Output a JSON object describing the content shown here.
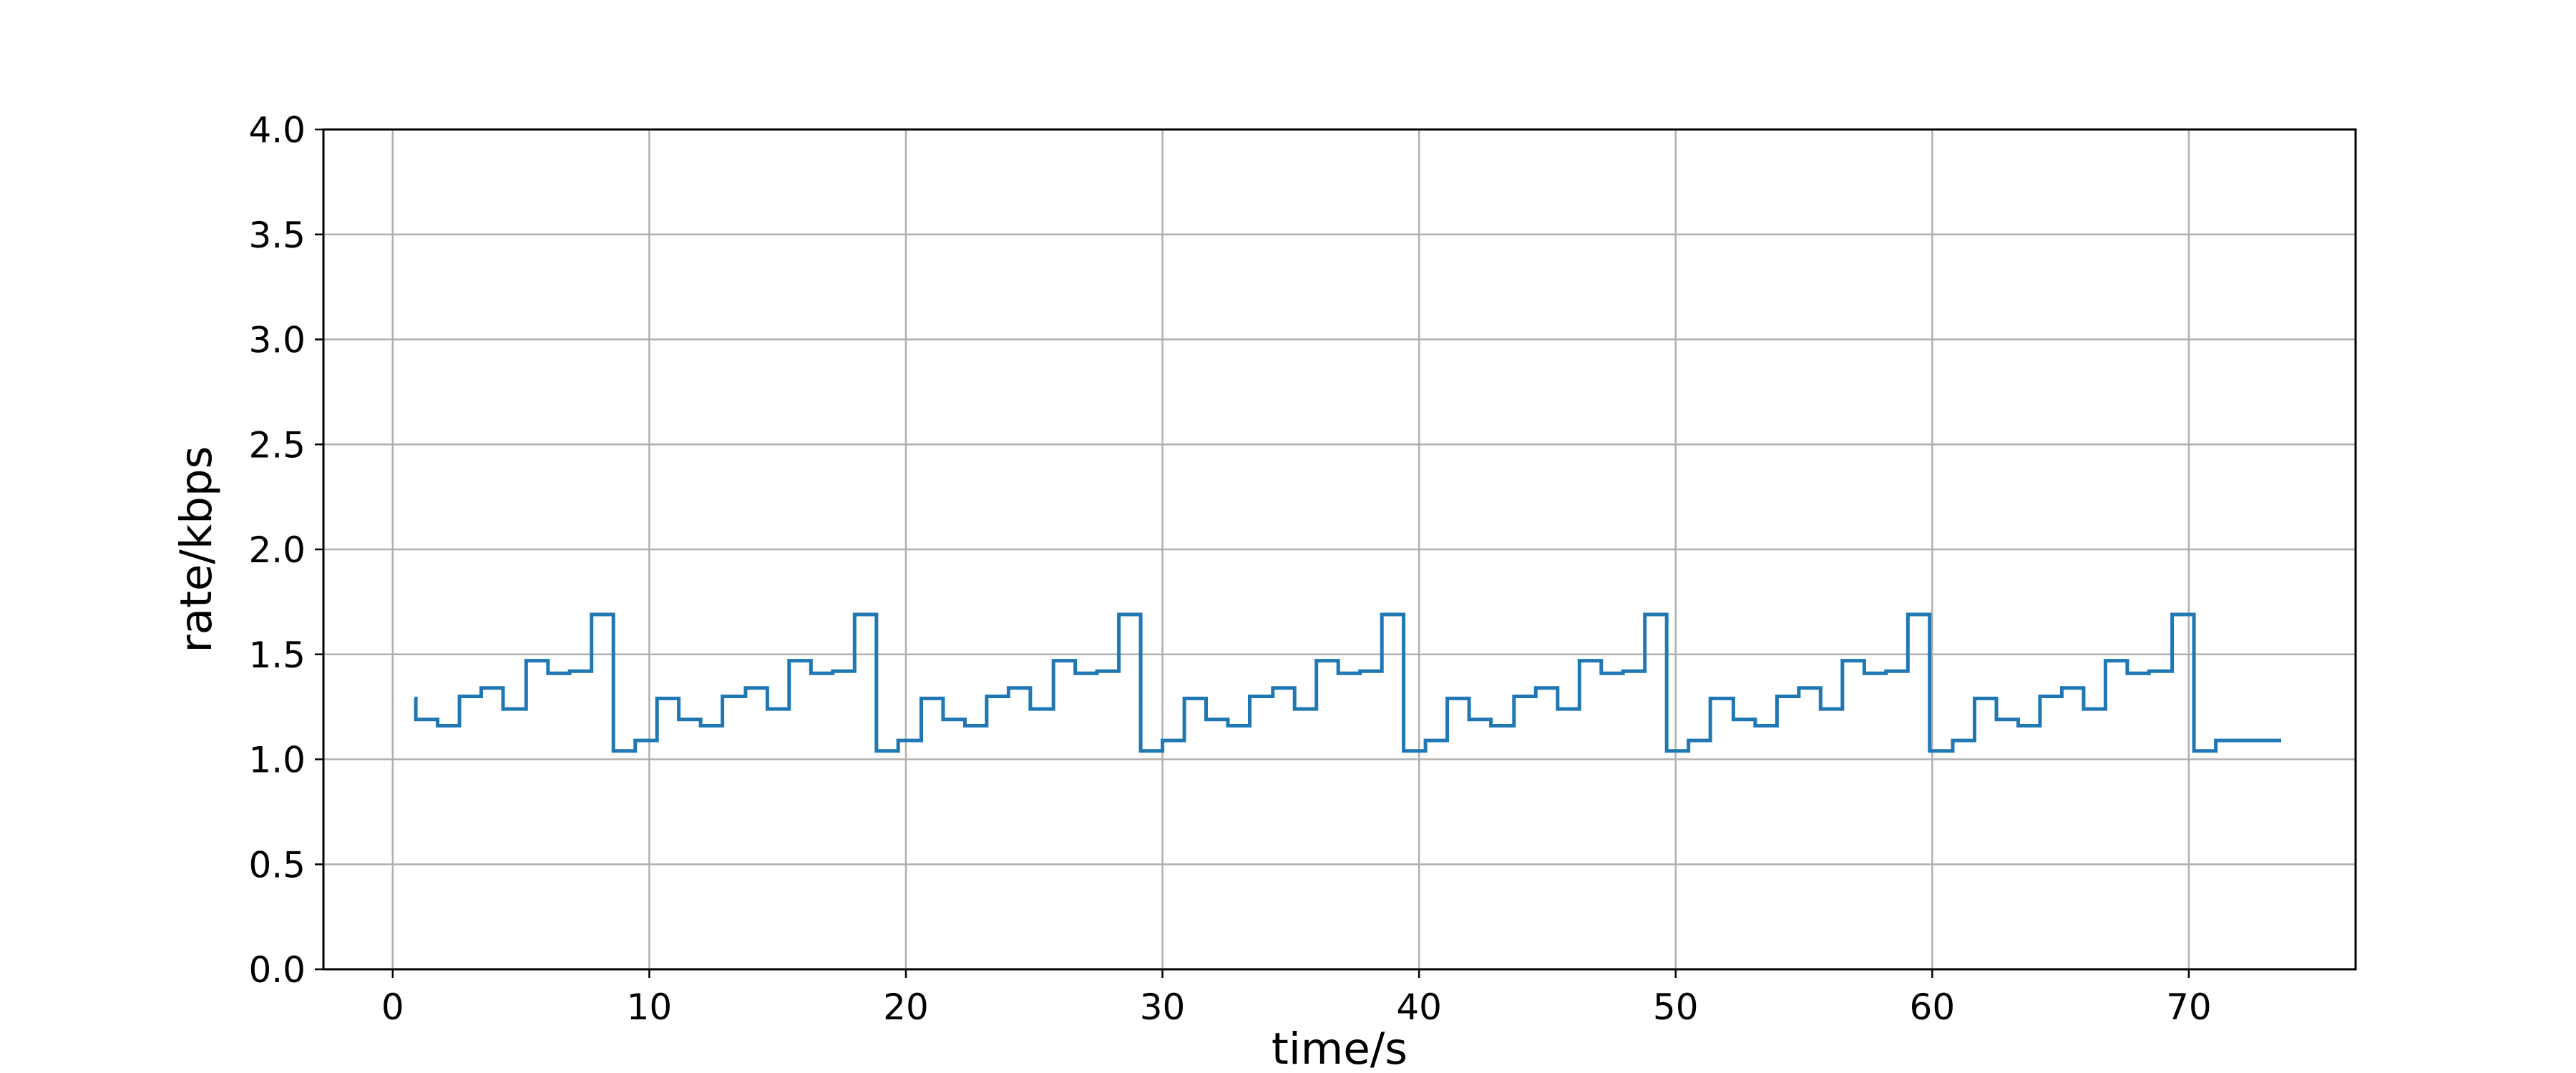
{
  "chart_data": {
    "type": "line",
    "step": "post",
    "xlabel": "time/s",
    "ylabel": "rate/kbps",
    "xlim": [
      -2.7,
      76.5
    ],
    "ylim": [
      0,
      4
    ],
    "xticks": [
      0,
      10,
      20,
      30,
      40,
      50,
      60,
      70
    ],
    "yticks": [
      0.0,
      0.5,
      1.0,
      1.5,
      2.0,
      2.5,
      3.0,
      3.5,
      4.0
    ],
    "xtick_labels": [
      "0",
      "10",
      "20",
      "30",
      "40",
      "50",
      "60",
      "70"
    ],
    "ytick_labels": [
      "0.0",
      "0.5",
      "1.0",
      "1.5",
      "2.0",
      "2.5",
      "3.0",
      "3.5",
      "4.0"
    ],
    "grid": true,
    "line_color": "#1f77b4",
    "series": [
      {
        "x": [
          0.85,
          0.9,
          1.75,
          2.6,
          3.45,
          4.3,
          5.2,
          6.05,
          6.9,
          7.75,
          8.6,
          9.45,
          10.3,
          11.15,
          12.0,
          12.85,
          13.75,
          14.6,
          15.45,
          16.3,
          17.15,
          18.0,
          18.85,
          19.7,
          20.6,
          21.45,
          22.3,
          23.15,
          24.0,
          24.85,
          25.75,
          26.6,
          27.45,
          28.3,
          29.15,
          30.0,
          30.85,
          31.7,
          32.55,
          33.4,
          34.3,
          35.15,
          36.0,
          36.85,
          37.7,
          38.55,
          39.4,
          40.25,
          41.1,
          41.95,
          42.8,
          43.7,
          44.55,
          45.4,
          46.25,
          47.1,
          47.95,
          48.8,
          49.65,
          50.5,
          51.35,
          52.25,
          53.1,
          53.95,
          54.8,
          55.65,
          56.5,
          57.35,
          58.2,
          59.05,
          59.9,
          60.8,
          61.65,
          62.5,
          63.35,
          64.2,
          65.05,
          65.9,
          66.75,
          67.6,
          68.45,
          69.35,
          70.2,
          71.05,
          71.9,
          72.75,
          73.6
        ],
        "y": [
          1.29,
          1.19,
          1.16,
          1.3,
          1.34,
          1.24,
          1.47,
          1.41,
          1.42,
          1.69,
          1.04,
          1.09,
          1.29,
          1.19,
          1.16,
          1.3,
          1.34,
          1.24,
          1.47,
          1.41,
          1.42,
          1.69,
          1.04,
          1.09,
          1.29,
          1.19,
          1.16,
          1.3,
          1.34,
          1.24,
          1.47,
          1.41,
          1.42,
          1.69,
          1.04,
          1.09,
          1.29,
          1.19,
          1.16,
          1.3,
          1.34,
          1.24,
          1.47,
          1.41,
          1.42,
          1.69,
          1.04,
          1.09,
          1.29,
          1.19,
          1.16,
          1.3,
          1.34,
          1.24,
          1.47,
          1.41,
          1.42,
          1.69,
          1.04,
          1.09,
          1.29,
          1.19,
          1.16,
          1.3,
          1.34,
          1.24,
          1.47,
          1.41,
          1.42,
          1.69,
          1.04,
          1.09,
          1.29,
          1.19,
          1.16,
          1.3,
          1.34,
          1.24,
          1.47,
          1.41,
          1.42,
          1.69,
          1.04,
          1.09,
          1.09,
          1.09,
          1.09
        ]
      }
    ]
  }
}
